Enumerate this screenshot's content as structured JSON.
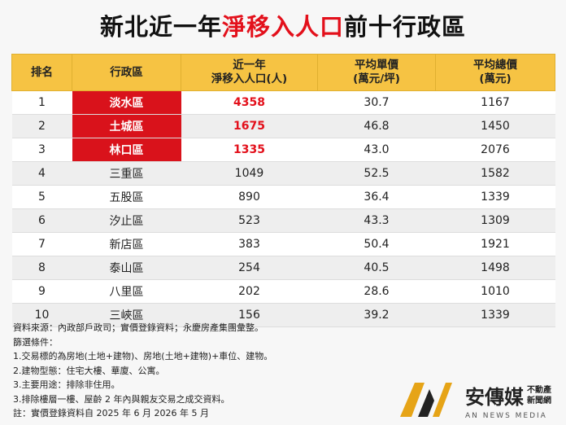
{
  "title": {
    "parts": [
      "新北近一年",
      "淨移入人口",
      "前十行政區"
    ]
  },
  "table": {
    "headers": [
      [
        "排名"
      ],
      [
        "行政區"
      ],
      [
        "近一年",
        "淨移入人口(人)"
      ],
      [
        "平均單價",
        "(萬元/坪)"
      ],
      [
        "平均總價",
        "(萬元)"
      ]
    ],
    "rows": [
      [
        "1",
        "淡水區",
        "4358",
        "30.7",
        "1167"
      ],
      [
        "2",
        "土城區",
        "1675",
        "46.8",
        "1450"
      ],
      [
        "3",
        "林口區",
        "1335",
        "43.0",
        "2076"
      ],
      [
        "4",
        "三重區",
        "1049",
        "52.5",
        "1582"
      ],
      [
        "5",
        "五股區",
        "890",
        "36.4",
        "1339"
      ],
      [
        "6",
        "汐止區",
        "523",
        "43.3",
        "1309"
      ],
      [
        "7",
        "新店區",
        "383",
        "50.4",
        "1921"
      ],
      [
        "8",
        "泰山區",
        "254",
        "40.5",
        "1498"
      ],
      [
        "9",
        "八里區",
        "202",
        "28.6",
        "1010"
      ],
      [
        "10",
        "三峽區",
        "156",
        "39.2",
        "1339"
      ]
    ]
  },
  "notes": [
    "資料來源：內政部戶政司；實價登錄資料；永慶房產集團彙整。",
    "篩選條件：",
    "1.交易標的為房地(土地+建物)、房地(土地+建物)+車位、建物。",
    "2.建物型態：住宅大樓、華廈、公寓。",
    "3.主要用途：排除非住用。",
    "3.排除樓層一樓、屋齡 2 年內與親友交易之成交資料。",
    "註：實價登錄資料自 2025 年 6 月 2026 年 5 月"
  ],
  "logo": {
    "name": "安傳媒",
    "sub": [
      "不動產",
      "新聞網"
    ],
    "tagline": "AN NEWS MEDIA"
  }
}
